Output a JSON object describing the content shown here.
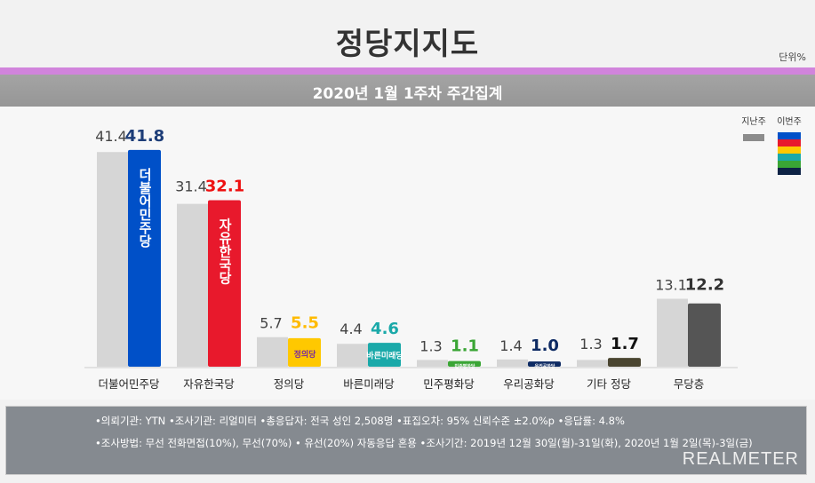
{
  "header": {
    "title": "정당지지도",
    "unit": "단위%",
    "subtitle": "2020년 1월 1주차 주간집계"
  },
  "legend": {
    "prev_label": "지난주",
    "curr_label": "이번주",
    "prev_color": "#8c8c8c",
    "curr_colors": [
      "#0050c8",
      "#e8192c",
      "#ffc800",
      "#1aa9a9",
      "#3aa535",
      "#0d2245"
    ]
  },
  "chart_data": {
    "type": "bar",
    "categories": [
      "더불어민주당",
      "자유한국당",
      "정의당",
      "바른미래당",
      "민주평화당",
      "우리공화당",
      "기타 정당",
      "무당층"
    ],
    "series": [
      {
        "name": "지난주",
        "values": [
          41.4,
          31.4,
          5.7,
          4.4,
          1.3,
          1.4,
          1.3,
          13.1
        ],
        "color": "#d6d6d6"
      },
      {
        "name": "이번주",
        "values": [
          41.8,
          32.1,
          5.5,
          4.6,
          1.1,
          1.0,
          1.7,
          12.2
        ],
        "colors": [
          "#0050c8",
          "#e8192c",
          "#ffc800",
          "#1aa9a9",
          "#3aa535",
          "#0d2a63",
          "#4a4530",
          "#555555"
        ],
        "label_colors": [
          "#1d3d78",
          "#ee1111",
          "#ffbb00",
          "#1aa9a9",
          "#3aa535",
          "#0d2a63",
          "#111111",
          "#333333"
        ]
      }
    ],
    "logos": [
      "더불어민주당",
      "자유한국당",
      "정의당",
      "바른미래당",
      "민주평화당",
      "우리공화당",
      "",
      ""
    ],
    "ylim": [
      0,
      45
    ]
  },
  "footer": {
    "line1": "•의뢰기관: YTN •조사기관: 리얼미터 •총응답자: 전국 성인 2,508명 •표집오차: 95% 신뢰수준 ±2.0%p •응답률: 4.8%",
    "line2": "•조사방법: 무선 전화면접(10%), 무선(70%) • 유선(20%) 자동응답 혼용  •조사기간: 2019년 12월 30일(월)-31일(화), 2020년 1월 2일(목)-3일(금)",
    "brand": "REALMETER"
  }
}
